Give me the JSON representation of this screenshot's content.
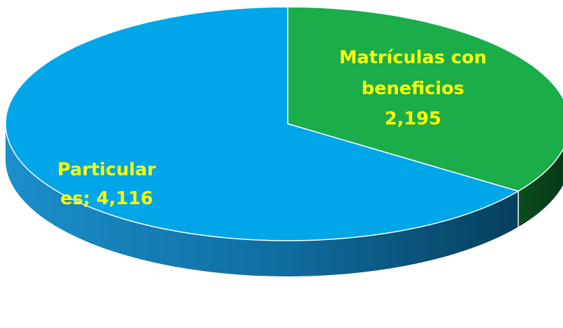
{
  "chart_data": {
    "type": "pie",
    "slices": [
      {
        "label": "Matrículas con beneficios",
        "value": 2195,
        "value_text": "2,195",
        "color": "#1AAD4A"
      },
      {
        "label": "Particulares",
        "value": 4116,
        "value_text": "4,116",
        "color": "#00A6E8"
      }
    ],
    "label_color": "#FFFF00",
    "three_d": true,
    "legend": "none"
  },
  "labels": {
    "benefits_line1": "Matrículas con",
    "benefits_line2": "beneficios",
    "benefits_value": "2,195",
    "particular_line1": "Particular",
    "particular_line2": "es; 4,116"
  }
}
